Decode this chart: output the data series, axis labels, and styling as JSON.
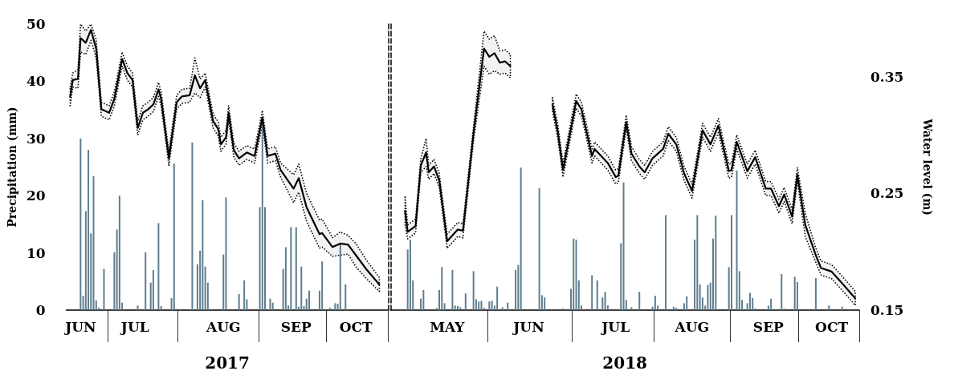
{
  "chart_data": [
    {
      "type": "bar",
      "xlabel": "2017",
      "ylabel": "Precipitation (mm)",
      "tick_labels": "xy",
      "categories": [
        null,
        null,
        null,
        null,
        null,
        "JUN",
        null,
        null,
        null,
        null,
        null,
        null,
        null,
        null,
        null,
        null,
        null,
        null,
        null,
        null,
        null,
        null,
        null,
        null,
        null,
        null,
        "JUL",
        null,
        null,
        null,
        null,
        null,
        null,
        null,
        null,
        null,
        null,
        null,
        null,
        null,
        null,
        null,
        null,
        null,
        null,
        null,
        null,
        null,
        null,
        null,
        null,
        null,
        null,
        null,
        null,
        null,
        null,
        null,
        null,
        null,
        "AUG",
        null,
        null,
        null,
        null,
        null,
        null,
        null,
        null,
        null,
        null,
        null,
        null,
        null,
        null,
        null,
        null,
        null,
        null,
        null,
        null,
        null,
        null,
        null,
        null,
        null,
        null,
        null,
        "SEP",
        null,
        null,
        null,
        null,
        null,
        null,
        null,
        null,
        null,
        null,
        null,
        null,
        null,
        null,
        null,
        null,
        null,
        null,
        null,
        null,
        null,
        null,
        "OCT",
        null,
        null,
        null,
        null,
        null,
        null,
        null,
        null,
        null,
        null,
        null,
        null
      ],
      "ylim": [
        0,
        50
      ],
      "yticks": [
        0,
        10,
        20,
        30,
        40,
        50
      ],
      "y2lim": [
        0.15,
        0.395
      ],
      "grid": false,
      "marker": "none",
      "line_style": "solid",
      "series": [
        {
          "color": "#5f7d8e",
          "values": [
            null,
            null,
            null,
            null,
            null,
            30,
            2.5,
            17.3,
            28,
            13.4,
            23.4,
            1.7,
            0.4,
            null,
            7.2,
            null,
            null,
            null,
            10.1,
            14.1,
            20,
            1.3,
            null,
            null,
            null,
            null,
            null,
            0.8,
            null,
            null,
            10.1,
            null,
            4.8,
            7,
            null,
            15.2,
            0.7,
            null,
            null,
            null,
            2.1,
            25.6,
            null,
            null,
            null,
            null,
            null,
            null,
            29.3,
            null,
            8,
            10.4,
            19.2,
            7.6,
            4.8,
            null,
            null,
            null,
            null,
            null,
            9.7,
            19.7,
            null,
            null,
            null,
            null,
            2.8,
            null,
            5.2,
            1.9,
            null,
            null,
            null,
            null,
            18,
            33.5,
            18,
            null,
            2,
            1.3,
            null,
            null,
            null,
            7.2,
            11,
            0.8,
            14.5,
            null,
            14.5,
            0.6,
            7.6,
            0.7,
            2,
            3.4,
            null,
            null,
            null,
            3.4,
            8.5,
            null,
            null,
            0.4,
            null,
            1.2,
            1.1,
            11.7,
            null,
            4.5,
            null,
            null,
            null,
            null,
            null,
            null,
            null,
            null,
            null,
            null,
            null,
            null,
            null,
            null,
            null,
            null
          ]
        },
        {
          "type": "line",
          "axis": "y2",
          "color": "#000000",
          "values": [
            null,
            0.333,
            0.347,
            null,
            0.348,
            0.383,
            null,
            0.379,
            null,
            0.39,
            null,
            0.374,
            null,
            0.322,
            null,
            null,
            0.319,
            null,
            0.331,
            null,
            null,
            0.365,
            null,
            0.353,
            null,
            0.347,
            null,
            0.306,
            null,
            0.319,
            null,
            0.322,
            null,
            0.326,
            null,
            0.339,
            0.331,
            null,
            null,
            0.28,
            null,
            null,
            0.328,
            null,
            0.333,
            null,
            null,
            0.334,
            null,
            0.351,
            null,
            0.34,
            null,
            0.347,
            null,
            null,
            0.312,
            null,
            0.305,
            0.292,
            null,
            0.298,
            0.319,
            null,
            0.287,
            null,
            0.28,
            null,
            null,
            0.285,
            null,
            null,
            0.282,
            null,
            null,
            0.315,
            null,
            0.282,
            null,
            null,
            0.284,
            null,
            0.27,
            null,
            null,
            null,
            null,
            0.254,
            null,
            0.263,
            null,
            null,
            0.238,
            null,
            null,
            null,
            null,
            0.215,
            0.216,
            null,
            null,
            null,
            0.204,
            null,
            null,
            0.207,
            null,
            null,
            0.206,
            null,
            null,
            0.197,
            null,
            null,
            null,
            0.185,
            null,
            null,
            null,
            null,
            0.172,
            null,
            null,
            null
          ],
          "lower": [
            null,
            0.325,
            0.341,
            null,
            0.34,
            0.371,
            null,
            0.369,
            null,
            0.381,
            null,
            0.366,
            null,
            0.316,
            null,
            null,
            0.313,
            null,
            0.325,
            null,
            null,
            0.359,
            null,
            0.347,
            null,
            0.341,
            null,
            0.3,
            null,
            0.313,
            null,
            0.316,
            null,
            0.32,
            null,
            0.333,
            0.325,
            null,
            null,
            0.274,
            null,
            null,
            0.322,
            null,
            0.327,
            null,
            null,
            0.328,
            null,
            0.336,
            null,
            0.332,
            null,
            0.341,
            null,
            null,
            0.306,
            null,
            0.299,
            0.286,
            null,
            0.292,
            0.313,
            null,
            0.281,
            null,
            0.274,
            null,
            null,
            0.279,
            null,
            null,
            0.276,
            null,
            null,
            0.309,
            null,
            0.276,
            null,
            null,
            0.278,
            null,
            0.264,
            null,
            null,
            null,
            null,
            0.242,
            null,
            0.251,
            null,
            null,
            0.226,
            null,
            null,
            null,
            null,
            0.203,
            0.204,
            null,
            null,
            null,
            0.196,
            null,
            null,
            0.197,
            null,
            null,
            0.198,
            null,
            null,
            0.187,
            null,
            null,
            null,
            0.177,
            null,
            null,
            null,
            null,
            0.166,
            null,
            null,
            null
          ],
          "upper": [
            null,
            0.341,
            0.353,
            null,
            0.356,
            0.395,
            null,
            0.389,
            null,
            0.395,
            null,
            0.382,
            null,
            0.328,
            null,
            null,
            0.325,
            null,
            0.337,
            null,
            null,
            0.371,
            null,
            0.359,
            null,
            0.353,
            null,
            0.312,
            null,
            0.325,
            null,
            0.328,
            null,
            0.332,
            null,
            0.345,
            0.337,
            null,
            null,
            0.286,
            null,
            null,
            0.334,
            null,
            0.339,
            null,
            null,
            0.34,
            null,
            0.366,
            null,
            0.348,
            null,
            0.353,
            null,
            null,
            0.318,
            null,
            0.311,
            0.298,
            null,
            0.304,
            0.325,
            null,
            0.293,
            null,
            0.286,
            null,
            null,
            0.291,
            null,
            null,
            0.288,
            null,
            null,
            0.321,
            null,
            0.288,
            null,
            null,
            0.29,
            null,
            0.276,
            null,
            null,
            null,
            null,
            0.266,
            null,
            0.275,
            null,
            null,
            0.25,
            null,
            null,
            null,
            null,
            0.227,
            0.228,
            null,
            null,
            null,
            0.212,
            null,
            null,
            0.217,
            null,
            null,
            0.214,
            null,
            null,
            0.207,
            null,
            null,
            null,
            0.193,
            null,
            null,
            null,
            null,
            0.178,
            null,
            null,
            null
          ]
        }
      ]
    },
    {
      "type": "bar",
      "xlabel": "2018",
      "y2label": "Water level (m)",
      "tick_labels": "xy2",
      "categories": [
        null,
        null,
        null,
        null,
        null,
        null,
        null,
        null,
        null,
        null,
        null,
        null,
        null,
        null,
        null,
        null,
        null,
        null,
        null,
        null,
        null,
        "MAY",
        null,
        null,
        null,
        null,
        null,
        null,
        null,
        null,
        null,
        null,
        null,
        null,
        null,
        null,
        null,
        null,
        null,
        null,
        null,
        null,
        null,
        null,
        null,
        null,
        null,
        null,
        null,
        null,
        null,
        null,
        "JUN",
        null,
        null,
        null,
        null,
        null,
        null,
        null,
        null,
        null,
        null,
        null,
        null,
        null,
        null,
        null,
        null,
        null,
        null,
        null,
        null,
        null,
        null,
        null,
        null,
        null,
        null,
        null,
        null,
        null,
        null,
        null,
        null,
        "JUL",
        null,
        null,
        null,
        null,
        null,
        null,
        null,
        null,
        null,
        null,
        null,
        null,
        null,
        null,
        null,
        null,
        null,
        null,
        null,
        null,
        null,
        null,
        null,
        null,
        null,
        null,
        null,
        null,
        "AUG",
        null,
        null,
        null,
        null,
        null,
        null,
        null,
        null,
        null,
        null,
        null,
        null,
        null,
        null,
        null,
        null,
        null,
        null,
        null,
        null,
        null,
        null,
        null,
        null,
        null,
        null,
        null,
        null,
        "SEP",
        null,
        null,
        null,
        null,
        null,
        null,
        null,
        null,
        null,
        null,
        null,
        null,
        null,
        null,
        null,
        null,
        null,
        null,
        null,
        null,
        null,
        null,
        null,
        "OCT",
        null,
        null,
        null,
        null,
        null,
        null,
        null,
        null,
        null,
        null
      ],
      "ylim": [
        0,
        50
      ],
      "y2lim": [
        0.15,
        0.395
      ],
      "y2ticks": [
        0.15,
        0.25,
        0.35
      ],
      "grid": false,
      "marker": "none",
      "line_style": "solid",
      "series": [
        {
          "color": "#5f7d8e",
          "values": [
            null,
            null,
            null,
            null,
            null,
            null,
            10.6,
            12.3,
            5.2,
            null,
            null,
            2,
            3.5,
            null,
            null,
            null,
            null,
            0.4,
            3.5,
            7.5,
            1.2,
            null,
            null,
            7,
            0.8,
            0.7,
            0.5,
            null,
            2.9,
            null,
            null,
            6.8,
            1.9,
            1.5,
            1.6,
            0.4,
            null,
            1.5,
            1.6,
            0.8,
            4.1,
            null,
            0.5,
            null,
            1.3,
            null,
            null,
            7,
            7.9,
            24.9,
            null,
            null,
            null,
            null,
            null,
            null,
            21.3,
            2.6,
            2.2,
            null,
            null,
            null,
            null,
            null,
            null,
            0.3,
            null,
            null,
            3.7,
            12.5,
            12.3,
            5.2,
            0.8,
            null,
            null,
            null,
            6.1,
            null,
            5.2,
            null,
            2.2,
            3.2,
            0.8,
            null,
            null,
            null,
            null,
            11.7,
            22.3,
            1.8,
            null,
            0.5,
            null,
            null,
            3.2,
            null,
            null,
            null,
            null,
            0.6,
            2.5,
            0.8,
            null,
            null,
            16.6,
            null,
            null,
            0.6,
            0.4,
            null,
            null,
            1.2,
            2.4,
            null,
            null,
            12.3,
            16.6,
            4.5,
            2.2,
            0.8,
            4.4,
            4.8,
            12.5,
            16.5,
            null,
            null,
            null,
            null,
            7.5,
            16.6,
            null,
            24.4,
            6.8,
            1.8,
            null,
            1.2,
            3,
            2.1,
            0.3,
            null,
            null,
            null,
            null,
            0.8,
            2,
            null,
            null,
            null,
            6.3,
            0.3,
            null,
            null,
            null,
            5.8,
            4.9,
            null,
            null,
            null,
            null,
            null,
            null,
            5.6,
            null,
            null,
            null,
            null,
            0.8,
            null,
            null,
            null,
            null,
            0.6,
            null,
            null,
            null,
            null,
            null,
            null
          ]
        },
        {
          "type": "line",
          "axis": "y2",
          "color": "#000000",
          "values": [
            null,
            null,
            null,
            null,
            null,
            0.235,
            0.217,
            null,
            null,
            0.222,
            null,
            0.274,
            null,
            0.285,
            0.268,
            null,
            0.273,
            null,
            0.261,
            null,
            null,
            0.209,
            null,
            null,
            null,
            0.219,
            null,
            0.218,
            null,
            null,
            null,
            0.301,
            null,
            null,
            null,
            0.374,
            null,
            0.367,
            null,
            0.37,
            null,
            0.362,
            null,
            0.363,
            null,
            0.359,
            null,
            null,
            null,
            null,
            null,
            null,
            null,
            null,
            null,
            null,
            null,
            null,
            null,
            null,
            null,
            null,
            null,
            null,
            null,
            null,
            null,
            null,
            null,
            null,
            null,
            null,
            null,
            null,
            null,
            null,
            null,
            null,
            null,
            null,
            null,
            null,
            null,
            null,
            null,
            null,
            null,
            null,
            null,
            null,
            null,
            null,
            null,
            null,
            null,
            null,
            null,
            null,
            null,
            null,
            null,
            null,
            null,
            null,
            null,
            null,
            null,
            null,
            null,
            null,
            null,
            null,
            null,
            null,
            null,
            null,
            null,
            null,
            null,
            null,
            null,
            null,
            null,
            null,
            null,
            null,
            null,
            null,
            null,
            null,
            null,
            null,
            null,
            null,
            null,
            null,
            null,
            null,
            null,
            null,
            null,
            null,
            null,
            null,
            null,
            null,
            null,
            null,
            null,
            null,
            null,
            null,
            null,
            null,
            null,
            null,
            null,
            null,
            null,
            null,
            null,
            null,
            null,
            null,
            null,
            null,
            null,
            null,
            null,
            null,
            null,
            null,
            null,
            null,
            null,
            null,
            null,
            null
          ],
          "lower": [
            null,
            null,
            null,
            null,
            null,
            0.223,
            0.211,
            null,
            null,
            0.216,
            null,
            0.268,
            null,
            0.273,
            0.262,
            null,
            0.267,
            null,
            0.255,
            null,
            null,
            0.203,
            null,
            null,
            null,
            0.213,
            null,
            0.212,
            null,
            null,
            null,
            0.295,
            null,
            null,
            null,
            0.359,
            null,
            0.352,
            null,
            0.355,
            null,
            0.352,
            null,
            0.353,
            null,
            0.349,
            null,
            null,
            null,
            null,
            null,
            null,
            null,
            null,
            null,
            null,
            null,
            null,
            null,
            null,
            null,
            null,
            null,
            null,
            null,
            null,
            null,
            null,
            null,
            null,
            null,
            null,
            null,
            null,
            null,
            null,
            null,
            null,
            null,
            null,
            null,
            null,
            null,
            null,
            null,
            null,
            null,
            null,
            null,
            null,
            null,
            null,
            null,
            null,
            null,
            null,
            null,
            null,
            null,
            null,
            null,
            null,
            null,
            null,
            null,
            null,
            null,
            null,
            null,
            null,
            null,
            null,
            null,
            null,
            null,
            null,
            null,
            null,
            null,
            null,
            null,
            null,
            null,
            null,
            null,
            null,
            null,
            null,
            null,
            null,
            null,
            null,
            null,
            null,
            null,
            null,
            null,
            null,
            null,
            null,
            null,
            null,
            null,
            null,
            null,
            null,
            null,
            null,
            null,
            null,
            null,
            null,
            null,
            null,
            null,
            null,
            null,
            null,
            null,
            null,
            null,
            null,
            null,
            null,
            null,
            null,
            null,
            null,
            null,
            null,
            null,
            null,
            null,
            null,
            null,
            null,
            null,
            null
          ],
          "upper": [
            null,
            null,
            null,
            null,
            null,
            0.247,
            0.223,
            null,
            null,
            0.228,
            null,
            0.28,
            null,
            0.297,
            0.274,
            null,
            0.279,
            null,
            0.267,
            null,
            null,
            0.215,
            null,
            null,
            null,
            0.225,
            null,
            0.224,
            null,
            null,
            null,
            0.307,
            null,
            null,
            null,
            0.389,
            null,
            0.382,
            null,
            0.385,
            null,
            0.372,
            null,
            0.373,
            null,
            0.369,
            null,
            null,
            null,
            null,
            null,
            null,
            null,
            null,
            null,
            null,
            null,
            null,
            null,
            null,
            null,
            null,
            null,
            null,
            null,
            null,
            null,
            null,
            null,
            null,
            null,
            null,
            null,
            null,
            null,
            null,
            null,
            null,
            null,
            null,
            null,
            null,
            null,
            null,
            null,
            null,
            null,
            null,
            null,
            null,
            null,
            null,
            null,
            null,
            null,
            null,
            null,
            null,
            null,
            null,
            null,
            null,
            null,
            null,
            null,
            null,
            null,
            null,
            null,
            null,
            null,
            null,
            null,
            null,
            null,
            null,
            null,
            null,
            null,
            null,
            null,
            null,
            null,
            null,
            null,
            null,
            null,
            null,
            null,
            null,
            null,
            null,
            null,
            null,
            null,
            null,
            null,
            null,
            null,
            null,
            null,
            null,
            null,
            null,
            null,
            null,
            null,
            null,
            null,
            null,
            null,
            null,
            null,
            null,
            null,
            null,
            null,
            null,
            null,
            null,
            null,
            null,
            null,
            null,
            null,
            null,
            null,
            null,
            null,
            null,
            null,
            null,
            null,
            null,
            null,
            null,
            null,
            null
          ]
        },
        {
          "type": "line",
          "axis": "y2",
          "color": "#000000",
          "values": [
            null,
            null,
            null,
            null,
            null,
            null,
            null,
            null,
            null,
            null,
            null,
            null,
            null,
            null,
            null,
            null,
            null,
            null,
            null,
            null,
            null,
            null,
            null,
            null,
            null,
            null,
            null,
            null,
            null,
            null,
            null,
            null,
            null,
            null,
            null,
            null,
            null,
            null,
            null,
            null,
            null,
            null,
            null,
            null,
            null,
            null,
            null,
            null,
            null,
            null,
            null,
            null,
            null,
            null,
            null,
            null,
            null,
            null,
            null,
            null,
            null,
            0.326,
            null,
            0.303,
            null,
            0.27,
            null,
            null,
            null,
            null,
            0.329,
            null,
            0.322,
            null,
            null,
            null,
            0.282,
            0.288,
            null,
            null,
            null,
            null,
            0.276,
            null,
            null,
            0.264,
            0.265,
            null,
            null,
            0.311,
            null,
            0.284,
            null,
            null,
            0.273,
            null,
            0.268,
            null,
            null,
            0.28,
            null,
            null,
            null,
            0.288,
            null,
            0.301,
            null,
            null,
            0.292,
            null,
            null,
            0.267,
            null,
            null,
            0.252,
            null,
            null,
            null,
            0.304,
            null,
            null,
            0.292,
            null,
            null,
            0.308,
            null,
            null,
            null,
            0.269,
            0.27,
            null,
            0.294,
            null,
            null,
            null,
            0.269,
            null,
            null,
            0.281,
            null,
            null,
            null,
            0.254,
            null,
            0.254,
            null,
            null,
            0.239,
            null,
            0.249,
            null,
            null,
            0.23,
            null,
            0.266,
            null,
            null,
            0.223,
            null,
            null,
            null,
            0.197,
            null,
            0.186,
            null,
            null,
            null,
            0.183,
            null,
            null,
            null,
            0.173,
            null,
            null,
            null,
            null,
            0.16,
            null
          ],
          "lower": [
            null,
            null,
            null,
            null,
            null,
            null,
            null,
            null,
            null,
            null,
            null,
            null,
            null,
            null,
            null,
            null,
            null,
            null,
            null,
            null,
            null,
            null,
            null,
            null,
            null,
            null,
            null,
            null,
            null,
            null,
            null,
            null,
            null,
            null,
            null,
            null,
            null,
            null,
            null,
            null,
            null,
            null,
            null,
            null,
            null,
            null,
            null,
            null,
            null,
            null,
            null,
            null,
            null,
            null,
            null,
            null,
            null,
            null,
            null,
            null,
            null,
            0.32,
            null,
            0.297,
            null,
            0.264,
            null,
            null,
            null,
            null,
            0.323,
            null,
            0.316,
            null,
            null,
            null,
            0.276,
            0.282,
            null,
            null,
            null,
            null,
            0.27,
            null,
            null,
            0.258,
            0.259,
            null,
            null,
            0.305,
            null,
            0.278,
            null,
            null,
            0.267,
            null,
            0.262,
            null,
            null,
            0.274,
            null,
            null,
            null,
            0.282,
            null,
            0.295,
            null,
            null,
            0.286,
            null,
            null,
            0.261,
            null,
            null,
            0.246,
            null,
            null,
            null,
            0.298,
            null,
            null,
            0.286,
            null,
            null,
            0.302,
            null,
            null,
            null,
            0.263,
            0.264,
            null,
            0.288,
            null,
            null,
            null,
            0.263,
            null,
            null,
            0.275,
            null,
            null,
            null,
            0.248,
            null,
            0.248,
            null,
            null,
            0.233,
            null,
            0.243,
            null,
            null,
            0.224,
            null,
            0.26,
            null,
            null,
            0.213,
            null,
            null,
            null,
            0.191,
            null,
            0.18,
            null,
            null,
            null,
            0.177,
            null,
            null,
            null,
            0.167,
            null,
            null,
            null,
            null,
            0.154,
            null
          ],
          "upper": [
            null,
            null,
            null,
            null,
            null,
            null,
            null,
            null,
            null,
            null,
            null,
            null,
            null,
            null,
            null,
            null,
            null,
            null,
            null,
            null,
            null,
            null,
            null,
            null,
            null,
            null,
            null,
            null,
            null,
            null,
            null,
            null,
            null,
            null,
            null,
            null,
            null,
            null,
            null,
            null,
            null,
            null,
            null,
            null,
            null,
            null,
            null,
            null,
            null,
            null,
            null,
            null,
            null,
            null,
            null,
            null,
            null,
            null,
            null,
            null,
            null,
            0.332,
            null,
            0.309,
            null,
            0.276,
            null,
            null,
            null,
            null,
            0.335,
            null,
            0.328,
            null,
            null,
            null,
            0.288,
            0.294,
            null,
            null,
            null,
            null,
            0.282,
            null,
            null,
            0.27,
            0.271,
            null,
            null,
            0.317,
            null,
            0.29,
            null,
            null,
            0.279,
            null,
            0.274,
            null,
            null,
            0.286,
            null,
            null,
            null,
            0.294,
            null,
            0.307,
            null,
            null,
            0.298,
            null,
            null,
            0.273,
            null,
            null,
            0.258,
            null,
            null,
            null,
            0.31,
            null,
            null,
            0.298,
            null,
            null,
            0.314,
            null,
            null,
            null,
            0.275,
            0.276,
            null,
            0.3,
            null,
            null,
            null,
            0.275,
            null,
            null,
            0.287,
            null,
            null,
            null,
            0.26,
            null,
            0.26,
            null,
            null,
            0.245,
            null,
            0.255,
            null,
            null,
            0.236,
            null,
            0.272,
            null,
            null,
            0.233,
            null,
            null,
            null,
            0.203,
            null,
            0.192,
            null,
            null,
            null,
            0.189,
            null,
            null,
            null,
            0.179,
            null,
            null,
            null,
            null,
            0.166,
            null
          ]
        }
      ]
    }
  ]
}
